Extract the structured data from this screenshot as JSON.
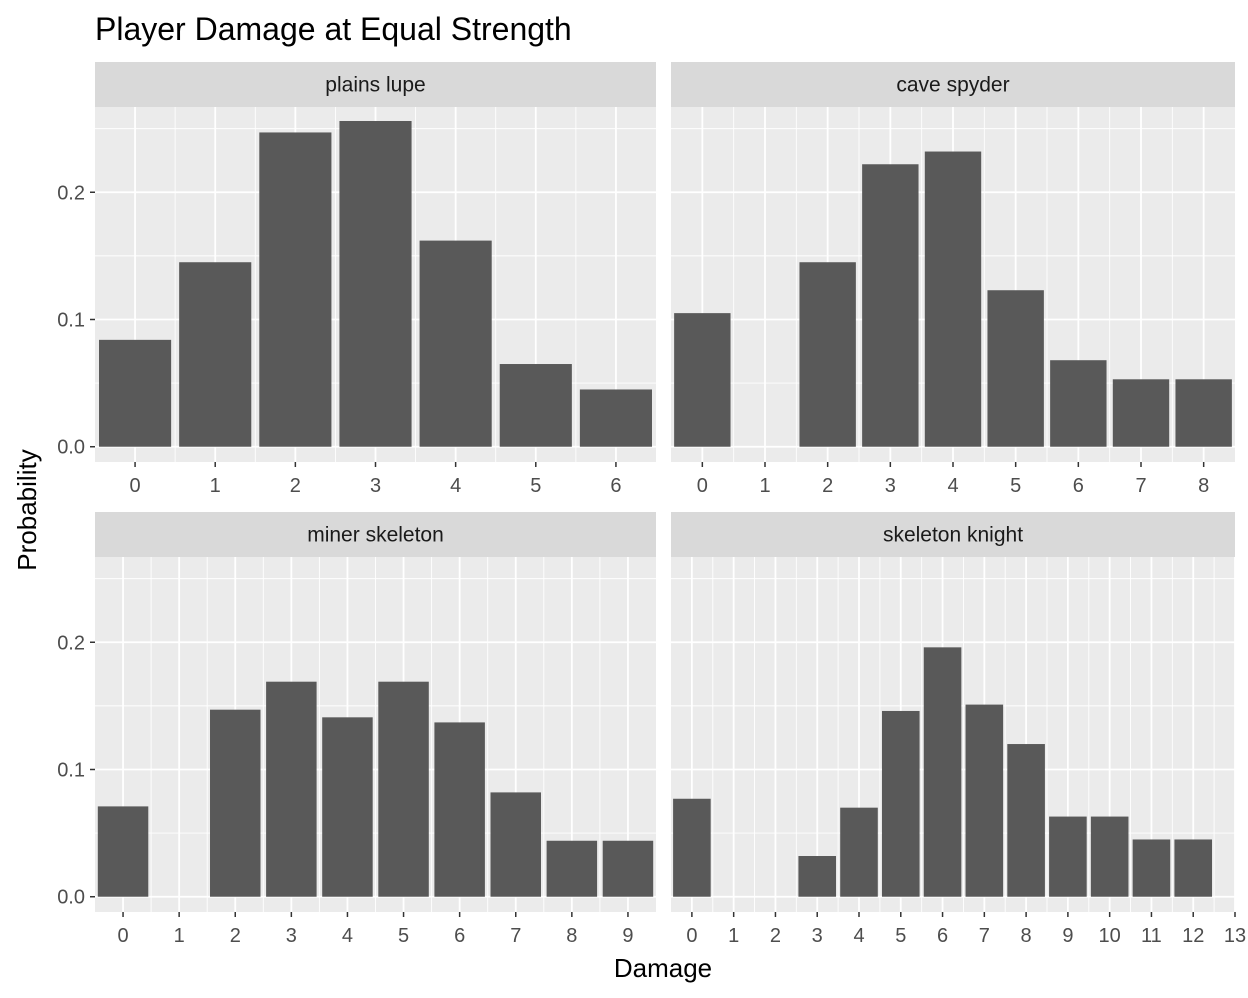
{
  "chart_data": {
    "type": "bar",
    "title": "Player Damage at Equal Strength",
    "xlabel": "Damage",
    "ylabel": "Probability",
    "ylim": [
      -0.012,
      0.267
    ],
    "yticks": [
      "0.0",
      "0.1",
      "0.2"
    ],
    "grid": true,
    "colors": {
      "bar": "#595959",
      "panel": "#ebebeb",
      "strip": "#d9d9d9",
      "grid": "#ffffff"
    },
    "panels": [
      {
        "name": "plains lupe",
        "xlim": [
          -0.5,
          6.5
        ],
        "categories": [
          "0",
          "1",
          "2",
          "3",
          "4",
          "5",
          "6"
        ],
        "values": [
          0.084,
          0.145,
          0.247,
          0.256,
          0.162,
          0.065,
          0.045
        ]
      },
      {
        "name": "cave spyder",
        "xlim": [
          -0.5,
          8.5
        ],
        "categories": [
          "0",
          "1",
          "2",
          "3",
          "4",
          "5",
          "6",
          "7",
          "8"
        ],
        "values": [
          0.105,
          0.0,
          0.145,
          0.222,
          0.232,
          0.123,
          0.068,
          0.053,
          0.053
        ]
      },
      {
        "name": "miner skeleton",
        "xlim": [
          -0.5,
          9.5
        ],
        "categories": [
          "0",
          "1",
          "2",
          "3",
          "4",
          "5",
          "6",
          "7",
          "8",
          "9"
        ],
        "values": [
          0.071,
          0.0,
          0.147,
          0.169,
          0.141,
          0.169,
          0.137,
          0.082,
          0.044,
          0.044
        ]
      },
      {
        "name": "skeleton knight",
        "xlim": [
          -0.5,
          13.0
        ],
        "categories": [
          "0",
          "1",
          "2",
          "3",
          "4",
          "5",
          "6",
          "7",
          "8",
          "9",
          "10",
          "11",
          "12",
          "13"
        ],
        "values": [
          0.077,
          0.0,
          0.0,
          0.032,
          0.07,
          0.146,
          0.196,
          0.151,
          0.12,
          0.063,
          0.063,
          0.045,
          0.045,
          null
        ]
      }
    ]
  }
}
